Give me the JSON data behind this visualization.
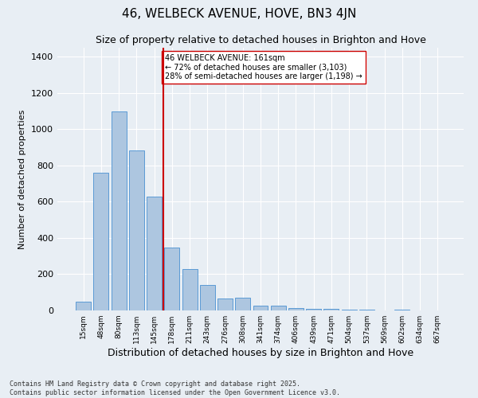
{
  "title": "46, WELBECK AVENUE, HOVE, BN3 4JN",
  "subtitle": "Size of property relative to detached houses in Brighton and Hove",
  "xlabel": "Distribution of detached houses by size in Brighton and Hove",
  "ylabel": "Number of detached properties",
  "categories": [
    "15sqm",
    "48sqm",
    "80sqm",
    "113sqm",
    "145sqm",
    "178sqm",
    "211sqm",
    "243sqm",
    "276sqm",
    "308sqm",
    "341sqm",
    "374sqm",
    "406sqm",
    "439sqm",
    "471sqm",
    "504sqm",
    "537sqm",
    "569sqm",
    "602sqm",
    "634sqm",
    "667sqm"
  ],
  "values": [
    48,
    758,
    1097,
    882,
    628,
    345,
    230,
    140,
    65,
    70,
    28,
    28,
    14,
    10,
    8,
    5,
    4,
    0,
    4,
    0,
    2
  ],
  "bar_color": "#adc6e0",
  "bar_edge_color": "#5b9bd5",
  "vline_x": 4.5,
  "vline_color": "#cc0000",
  "annotation_text": "46 WELBECK AVENUE: 161sqm\n← 72% of detached houses are smaller (3,103)\n28% of semi-detached houses are larger (1,198) →",
  "annotation_box_color": "#ffffff",
  "annotation_box_edge": "#cc0000",
  "ylim": [
    0,
    1450
  ],
  "background_color": "#e8eef4",
  "footer_text": "Contains HM Land Registry data © Crown copyright and database right 2025.\nContains public sector information licensed under the Open Government Licence v3.0.",
  "title_fontsize": 11,
  "subtitle_fontsize": 9,
  "ylabel_fontsize": 8,
  "xlabel_fontsize": 9,
  "annotation_fontsize": 7,
  "tick_fontsize": 6.5,
  "ytick_fontsize": 8,
  "footer_fontsize": 6
}
